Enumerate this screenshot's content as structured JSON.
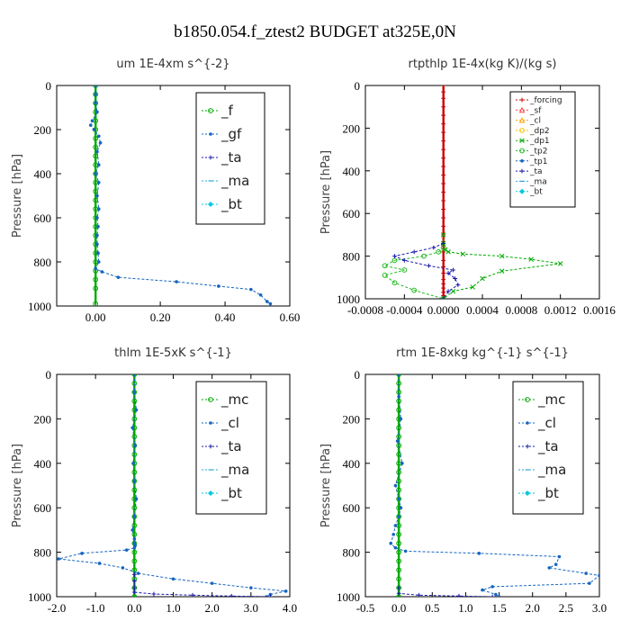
{
  "title": "b1850.054.f_ztest2  BUDGET at325E,0N",
  "chart_data": [
    {
      "id": "um",
      "type": "line",
      "title": "um   1E-4xm s^{-2}",
      "ylabel": "Pressure [hPa]",
      "xlim": [
        -0.12,
        0.6
      ],
      "ylim": [
        1000,
        0
      ],
      "xticks": [
        0.0,
        0.2,
        0.4,
        0.6
      ],
      "xticklabels": [
        "0.00",
        "0.20",
        "0.40",
        "0.60"
      ],
      "yticks": [
        0,
        200,
        400,
        600,
        800,
        1000
      ],
      "yticklabels": [
        "0",
        "200",
        "400",
        "600",
        "800",
        "1000"
      ],
      "legend_style": "big",
      "legend_position": "top-right",
      "series": [
        {
          "name": "_f",
          "color": "#00aa00",
          "marker": "o",
          "x": [
            0,
            0,
            0,
            0,
            0,
            0,
            0,
            0,
            0,
            0,
            0,
            0,
            0,
            0,
            0,
            0,
            0,
            0,
            0,
            0,
            0,
            0,
            0,
            0,
            0
          ],
          "y": [
            0,
            40,
            80,
            120,
            160,
            200,
            240,
            280,
            320,
            360,
            400,
            440,
            480,
            520,
            560,
            600,
            640,
            680,
            720,
            760,
            800,
            840,
            880,
            920,
            990
          ]
        },
        {
          "name": "_gf",
          "color": "#1565c0",
          "marker": "dot",
          "x": [
            0.0,
            0.0,
            0.0,
            0.005,
            -0.01,
            -0.015,
            -0.005,
            0.01,
            0.015,
            0.005,
            0.01,
            0.0,
            0.01,
            0.005,
            0.01,
            0.005,
            0.008,
            0.005,
            0.005,
            0.008,
            0.01,
            0.0,
            0.02,
            0.07,
            0.25,
            0.38,
            0.48,
            0.51,
            0.53,
            0.54
          ],
          "y": [
            0,
            40,
            80,
            120,
            160,
            180,
            200,
            230,
            260,
            300,
            360,
            400,
            440,
            500,
            560,
            600,
            640,
            680,
            720,
            760,
            800,
            830,
            845,
            870,
            890,
            910,
            925,
            950,
            980,
            990
          ]
        },
        {
          "name": "_ta",
          "color": "#1a1aaa",
          "marker": "plus",
          "x": [],
          "y": []
        },
        {
          "name": "_ma",
          "color": "#2aa6d6",
          "marker": "dash",
          "x": [],
          "y": []
        },
        {
          "name": "_bt",
          "color": "#00c8dd",
          "marker": "diamond",
          "x": [],
          "y": []
        }
      ]
    },
    {
      "id": "rtpthlp",
      "type": "line",
      "title": "rtpthlp   1E-4x(kg K)/(kg s)",
      "ylabel": "Pressure [hPa]",
      "xlim": [
        -0.0008,
        0.0016
      ],
      "ylim": [
        1000,
        0
      ],
      "xticks": [
        -0.0008,
        -0.0004,
        0.0,
        0.0004,
        0.0008,
        0.0012,
        0.0016
      ],
      "xticklabels": [
        "-0.0008",
        "-0.0004",
        "0.0000",
        "0.0004",
        "0.0008",
        "0.0012",
        "0.0016"
      ],
      "yticks": [
        0,
        200,
        400,
        600,
        800,
        1000
      ],
      "yticklabels": [
        "0",
        "200",
        "400",
        "600",
        "800",
        "1000"
      ],
      "legend_style": "small",
      "legend_position": "top-right",
      "series": [
        {
          "name": "_forcing",
          "color": "#cc0000",
          "marker": "plus",
          "x": [
            0,
            0,
            0,
            0,
            0,
            0,
            0,
            0,
            0,
            0,
            0,
            0,
            0,
            0,
            0,
            0,
            0,
            0,
            0,
            0,
            0,
            0,
            0,
            0,
            0,
            0,
            0,
            0,
            0,
            0
          ],
          "y": [
            0,
            30,
            60,
            100,
            140,
            180,
            220,
            260,
            300,
            340,
            380,
            420,
            460,
            500,
            540,
            580,
            620,
            660,
            700,
            740,
            780,
            820,
            850,
            880,
            910,
            930,
            950,
            970,
            985,
            1000
          ]
        },
        {
          "name": "_sf",
          "color": "#ff4040",
          "marker": "tri",
          "x": [],
          "y": []
        },
        {
          "name": "_cl",
          "color": "#ffa000",
          "marker": "tri",
          "x": [],
          "y": []
        },
        {
          "name": "_dp2",
          "color": "#ffc000",
          "marker": "o",
          "x": [],
          "y": []
        },
        {
          "name": "_dp1",
          "color": "#00aa00",
          "marker": "x",
          "x": [
            0.0,
            0.0,
            2e-05,
            5e-05,
            0.0002,
            0.0006,
            0.0009,
            0.0012,
            0.0006,
            0.0004,
            0.0003,
            0.0001,
            0.0
          ],
          "y": [
            700,
            740,
            770,
            780,
            790,
            800,
            815,
            835,
            870,
            905,
            945,
            965,
            1000
          ]
        },
        {
          "name": "_tp2",
          "color": "#22bb22",
          "marker": "o",
          "x": [
            0.0,
            -5e-05,
            -0.0002,
            -0.0005,
            -0.0006,
            -0.0004,
            -0.0006,
            -0.0005,
            -0.0003,
            0.0
          ],
          "y": [
            760,
            780,
            800,
            820,
            845,
            865,
            890,
            925,
            960,
            1000
          ]
        },
        {
          "name": "_tp1",
          "color": "#1565c0",
          "marker": "dot",
          "x": [],
          "y": []
        },
        {
          "name": "_ta",
          "color": "#1a1aaa",
          "marker": "plus",
          "x": [
            0.0,
            -0.0001,
            -0.0003,
            -0.0005,
            -0.0004,
            -0.00015,
            0.0001,
            5e-05,
            0.00012,
            0.00015,
            5e-05,
            0.0
          ],
          "y": [
            740,
            760,
            780,
            800,
            820,
            845,
            865,
            880,
            905,
            935,
            965,
            1000
          ]
        },
        {
          "name": "_ma",
          "color": "#2aa6d6",
          "marker": "dash",
          "x": [],
          "y": []
        },
        {
          "name": "_bt",
          "color": "#00c8dd",
          "marker": "diamond",
          "x": [],
          "y": []
        }
      ]
    },
    {
      "id": "thlm",
      "type": "line",
      "title": "thlm   1E-5xK s^{-1}",
      "ylabel": "Pressure [hPa]",
      "xlim": [
        -2.0,
        4.0
      ],
      "ylim": [
        1000,
        0
      ],
      "xticks": [
        -2.0,
        -1.0,
        0.0,
        1.0,
        2.0,
        3.0,
        4.0
      ],
      "xticklabels": [
        "-2.0",
        "-1.0",
        "0.0",
        "1.0",
        "2.0",
        "3.0",
        "4.0"
      ],
      "yticks": [
        0,
        200,
        400,
        600,
        800,
        1000
      ],
      "yticklabels": [
        "0",
        "200",
        "400",
        "600",
        "800",
        "1000"
      ],
      "legend_style": "big",
      "legend_position": "top-right",
      "series": [
        {
          "name": "_mc",
          "color": "#00aa00",
          "marker": "o",
          "x": [
            0,
            0,
            0,
            0,
            0,
            0,
            0,
            0,
            0,
            0,
            0,
            0,
            0,
            0,
            0,
            0,
            0,
            0,
            0,
            0,
            0,
            0,
            0,
            0,
            0,
            0
          ],
          "y": [
            0,
            40,
            80,
            120,
            160,
            200,
            240,
            280,
            320,
            360,
            400,
            440,
            480,
            520,
            560,
            600,
            640,
            680,
            720,
            760,
            800,
            840,
            880,
            920,
            960,
            1000
          ]
        },
        {
          "name": "_cl",
          "color": "#1565c0",
          "marker": "dot",
          "x": [
            0.0,
            0.0,
            0.05,
            -0.05,
            0.02,
            -0.03,
            0.0,
            0.05,
            0.0,
            -0.05,
            0.0,
            0.0,
            0.02,
            0.0,
            -0.2,
            -1.35,
            -1.95,
            -0.9,
            -0.3,
            0.1,
            1.0,
            2.0,
            3.0,
            3.9,
            3.5,
            3.4
          ],
          "y": [
            0,
            80,
            160,
            240,
            320,
            400,
            480,
            560,
            640,
            700,
            740,
            760,
            770,
            780,
            790,
            805,
            830,
            850,
            870,
            895,
            920,
            940,
            960,
            975,
            990,
            1000
          ]
        },
        {
          "name": "_ta",
          "color": "#1a1aaa",
          "marker": "plus",
          "x": [
            0.0,
            0.0,
            0.0,
            0.0,
            0.5,
            1.5,
            2.5,
            3.5
          ],
          "y": [
            900,
            930,
            960,
            980,
            988,
            993,
            997,
            1000
          ]
        },
        {
          "name": "_ma",
          "color": "#2aa6d6",
          "marker": "dash",
          "x": [],
          "y": []
        },
        {
          "name": "_bt",
          "color": "#00c8dd",
          "marker": "diamond",
          "x": [],
          "y": []
        }
      ]
    },
    {
      "id": "rtm",
      "type": "line",
      "title": "rtm   1E-8xkg kg^{-1} s^{-1}",
      "ylabel": "Pressure [hPa]",
      "xlim": [
        -0.5,
        3.0
      ],
      "ylim": [
        1000,
        0
      ],
      "xticks": [
        -0.5,
        0.0,
        0.5,
        1.0,
        1.5,
        2.0,
        2.5,
        3.0
      ],
      "xticklabels": [
        "-0.5",
        "0.0",
        "0.5",
        "1.0",
        "1.5",
        "2.0",
        "2.5",
        "3.0"
      ],
      "yticks": [
        0,
        200,
        400,
        600,
        800,
        1000
      ],
      "yticklabels": [
        "0",
        "200",
        "400",
        "600",
        "800",
        "1000"
      ],
      "legend_style": "big",
      "legend_position": "top-right",
      "series": [
        {
          "name": "_mc",
          "color": "#00aa00",
          "marker": "o",
          "x": [
            0,
            0,
            0,
            0,
            0,
            0,
            0,
            0,
            0,
            0,
            0,
            0,
            0,
            0,
            0,
            0,
            0,
            0,
            0,
            0,
            0,
            0,
            0,
            0,
            0,
            0
          ],
          "y": [
            0,
            40,
            80,
            120,
            160,
            200,
            240,
            280,
            320,
            360,
            400,
            440,
            480,
            520,
            560,
            600,
            640,
            680,
            720,
            760,
            800,
            840,
            880,
            920,
            960,
            1000
          ]
        },
        {
          "name": "_cl",
          "color": "#1565c0",
          "marker": "dot",
          "x": [
            0.0,
            0.0,
            0.03,
            -0.02,
            0.05,
            -0.05,
            0.0,
            0.03,
            0.0,
            -0.05,
            -0.08,
            -0.12,
            -0.05,
            0.1,
            1.2,
            2.4,
            2.35,
            2.25,
            2.8,
            3.0,
            2.85,
            1.4,
            1.25,
            1.45,
            1.5
          ],
          "y": [
            0,
            100,
            200,
            300,
            400,
            500,
            560,
            600,
            640,
            680,
            720,
            760,
            780,
            795,
            805,
            820,
            855,
            870,
            895,
            905,
            940,
            955,
            970,
            990,
            1000
          ]
        },
        {
          "name": "_ta",
          "color": "#1a1aaa",
          "marker": "plus",
          "x": [
            0.0,
            0.0,
            0.3,
            0.9,
            1.4
          ],
          "y": [
            960,
            985,
            993,
            997,
            1000
          ]
        },
        {
          "name": "_ma",
          "color": "#2aa6d6",
          "marker": "dash",
          "x": [],
          "y": []
        },
        {
          "name": "_bt",
          "color": "#00c8dd",
          "marker": "diamond",
          "x": [],
          "y": []
        }
      ]
    }
  ]
}
